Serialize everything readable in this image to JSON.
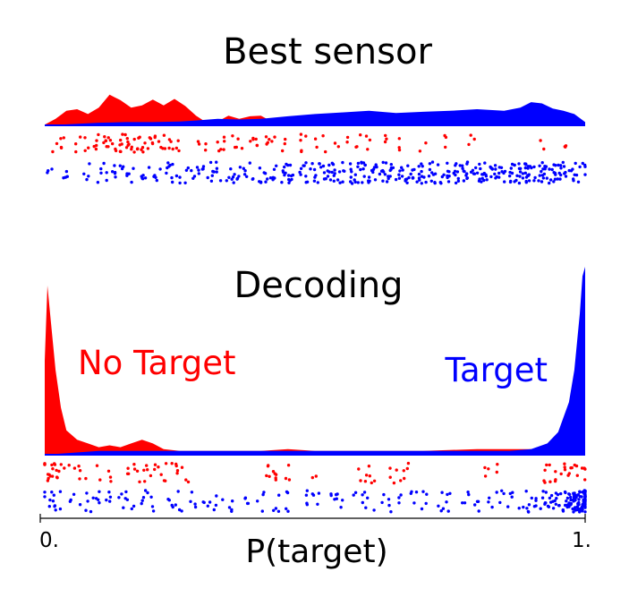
{
  "colors": {
    "no_target": "#ff0000",
    "target": "#0000ff",
    "axis": "#000000"
  },
  "chart_data": [
    {
      "type": "area",
      "title": "Best sensor",
      "xlim": [
        0,
        1
      ],
      "series": [
        {
          "color": "#ff0000",
          "density": [
            [
              0.0,
              0.02
            ],
            [
              0.02,
              0.2
            ],
            [
              0.04,
              0.45
            ],
            [
              0.06,
              0.5
            ],
            [
              0.08,
              0.35
            ],
            [
              0.1,
              0.55
            ],
            [
              0.12,
              0.95
            ],
            [
              0.14,
              0.78
            ],
            [
              0.16,
              0.55
            ],
            [
              0.18,
              0.62
            ],
            [
              0.2,
              0.8
            ],
            [
              0.22,
              0.62
            ],
            [
              0.24,
              0.82
            ],
            [
              0.26,
              0.6
            ],
            [
              0.28,
              0.3
            ],
            [
              0.3,
              0.08
            ],
            [
              0.32,
              0.12
            ],
            [
              0.34,
              0.3
            ],
            [
              0.36,
              0.2
            ],
            [
              0.38,
              0.28
            ],
            [
              0.4,
              0.3
            ],
            [
              0.42,
              0.12
            ],
            [
              0.44,
              0.05
            ],
            [
              0.46,
              0.12
            ],
            [
              0.48,
              0.2
            ],
            [
              0.5,
              0.08
            ],
            [
              0.52,
              0.03
            ],
            [
              0.56,
              0.02
            ],
            [
              0.6,
              0.02
            ],
            [
              0.65,
              0.02
            ],
            [
              0.7,
              0.02
            ],
            [
              0.8,
              0.02
            ],
            [
              0.9,
              0.02
            ],
            [
              1.0,
              0.0
            ]
          ]
        },
        {
          "color": "#0000ff",
          "density": [
            [
              0.0,
              0.0
            ],
            [
              0.05,
              0.04
            ],
            [
              0.1,
              0.08
            ],
            [
              0.15,
              0.1
            ],
            [
              0.2,
              0.1
            ],
            [
              0.25,
              0.12
            ],
            [
              0.28,
              0.15
            ],
            [
              0.32,
              0.2
            ],
            [
              0.36,
              0.18
            ],
            [
              0.4,
              0.2
            ],
            [
              0.45,
              0.28
            ],
            [
              0.5,
              0.35
            ],
            [
              0.55,
              0.4
            ],
            [
              0.6,
              0.45
            ],
            [
              0.65,
              0.38
            ],
            [
              0.7,
              0.42
            ],
            [
              0.75,
              0.45
            ],
            [
              0.8,
              0.5
            ],
            [
              0.85,
              0.45
            ],
            [
              0.88,
              0.55
            ],
            [
              0.9,
              0.72
            ],
            [
              0.92,
              0.68
            ],
            [
              0.94,
              0.52
            ],
            [
              0.96,
              0.45
            ],
            [
              0.98,
              0.35
            ],
            [
              1.0,
              0.1
            ]
          ]
        }
      ],
      "points": {
        "no_target": [
          0.02,
          0.03,
          0.035,
          0.06,
          0.07,
          0.08,
          0.09,
          0.1,
          0.11,
          0.115,
          0.12,
          0.13,
          0.135,
          0.14,
          0.15,
          0.155,
          0.16,
          0.17,
          0.175,
          0.18,
          0.19,
          0.2,
          0.21,
          0.215,
          0.22,
          0.23,
          0.24,
          0.25,
          0.28,
          0.3,
          0.32,
          0.33,
          0.35,
          0.36,
          0.38,
          0.39,
          0.41,
          0.42,
          0.44,
          0.47,
          0.48,
          0.5,
          0.52,
          0.54,
          0.56,
          0.58,
          0.6,
          0.63,
          0.66,
          0.7,
          0.74,
          0.79,
          0.92,
          0.96
        ],
        "target_sample": [
          0.01,
          0.04,
          0.08,
          0.1,
          0.12,
          0.14,
          0.16,
          0.18,
          0.2,
          0.22,
          0.24,
          0.26,
          0.28,
          0.3,
          0.32,
          0.34,
          0.36,
          0.38,
          0.4,
          0.42,
          0.44,
          0.46,
          0.48,
          0.5,
          0.52,
          0.54,
          0.56,
          0.58,
          0.6,
          0.62,
          0.64,
          0.66,
          0.68,
          0.7,
          0.72,
          0.74,
          0.76,
          0.78,
          0.8,
          0.82,
          0.84,
          0.86,
          0.88,
          0.9,
          0.92,
          0.94,
          0.96,
          0.98,
          1.0
        ]
      }
    },
    {
      "type": "area",
      "title": "Decoding",
      "xlabel": "P(target)",
      "xlim": [
        0,
        1
      ],
      "xtick_labels": [
        "0.",
        "1."
      ],
      "series": [
        {
          "name": "No Target",
          "color": "#ff0000",
          "density": [
            [
              0.0,
              0.5
            ],
            [
              0.005,
              0.9
            ],
            [
              0.01,
              0.75
            ],
            [
              0.02,
              0.45
            ],
            [
              0.03,
              0.25
            ],
            [
              0.04,
              0.13
            ],
            [
              0.06,
              0.08
            ],
            [
              0.08,
              0.06
            ],
            [
              0.1,
              0.04
            ],
            [
              0.12,
              0.05
            ],
            [
              0.14,
              0.04
            ],
            [
              0.16,
              0.06
            ],
            [
              0.18,
              0.08
            ],
            [
              0.2,
              0.06
            ],
            [
              0.22,
              0.03
            ],
            [
              0.25,
              0.02
            ],
            [
              0.3,
              0.02
            ],
            [
              0.4,
              0.02
            ],
            [
              0.45,
              0.03
            ],
            [
              0.5,
              0.02
            ],
            [
              0.6,
              0.02
            ],
            [
              0.7,
              0.02
            ],
            [
              0.8,
              0.03
            ],
            [
              0.86,
              0.03
            ],
            [
              0.9,
              0.03
            ],
            [
              0.94,
              0.04
            ],
            [
              0.97,
              0.04
            ],
            [
              1.0,
              0.03
            ]
          ]
        },
        {
          "name": "Target",
          "color": "#0000ff",
          "density": [
            [
              0.0,
              0.0
            ],
            [
              0.05,
              0.01
            ],
            [
              0.1,
              0.02
            ],
            [
              0.2,
              0.02
            ],
            [
              0.3,
              0.02
            ],
            [
              0.4,
              0.02
            ],
            [
              0.5,
              0.02
            ],
            [
              0.6,
              0.02
            ],
            [
              0.7,
              0.02
            ],
            [
              0.8,
              0.02
            ],
            [
              0.86,
              0.02
            ],
            [
              0.9,
              0.03
            ],
            [
              0.93,
              0.06
            ],
            [
              0.95,
              0.12
            ],
            [
              0.97,
              0.28
            ],
            [
              0.98,
              0.45
            ],
            [
              0.99,
              0.75
            ],
            [
              0.995,
              0.95
            ],
            [
              1.0,
              1.0
            ]
          ]
        }
      ],
      "points": {
        "no_target": [
          0.0,
          0.005,
          0.01,
          0.015,
          0.02,
          0.025,
          0.03,
          0.04,
          0.06,
          0.07,
          0.1,
          0.12,
          0.15,
          0.17,
          0.18,
          0.19,
          0.2,
          0.21,
          0.22,
          0.24,
          0.25,
          0.26,
          0.41,
          0.42,
          0.43,
          0.45,
          0.5,
          0.58,
          0.59,
          0.6,
          0.61,
          0.64,
          0.65,
          0.66,
          0.67,
          0.82,
          0.84,
          0.92,
          0.93,
          0.94,
          0.95,
          0.96,
          0.97,
          0.98,
          0.99,
          1.0
        ],
        "target_sample": [
          0.0,
          0.01,
          0.02,
          0.03,
          0.05,
          0.07,
          0.08,
          0.1,
          0.12,
          0.14,
          0.16,
          0.18,
          0.2,
          0.23,
          0.25,
          0.27,
          0.3,
          0.32,
          0.35,
          0.38,
          0.4,
          0.43,
          0.45,
          0.48,
          0.5,
          0.53,
          0.55,
          0.58,
          0.6,
          0.63,
          0.65,
          0.68,
          0.7,
          0.73,
          0.75,
          0.78,
          0.8,
          0.83,
          0.85,
          0.87,
          0.89,
          0.9,
          0.91,
          0.92,
          0.93,
          0.94,
          0.95,
          0.96,
          0.97,
          0.98,
          0.99,
          1.0
        ]
      }
    }
  ]
}
